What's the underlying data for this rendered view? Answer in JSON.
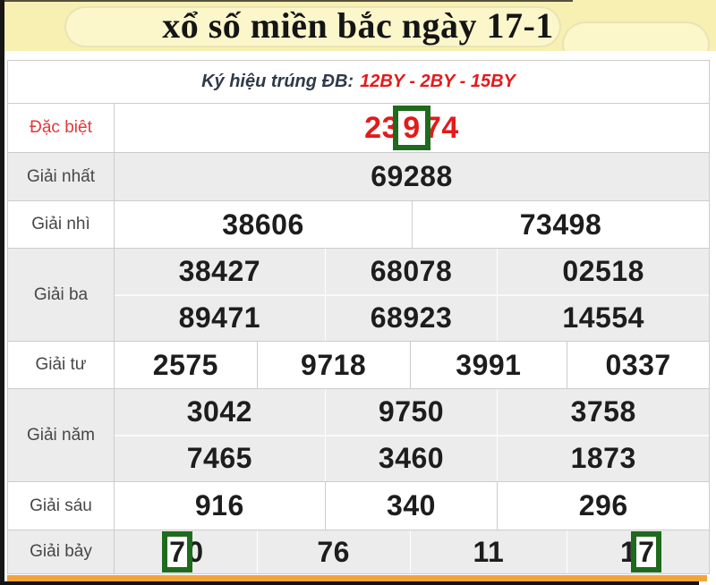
{
  "header": {
    "title": "xổ số miền bắc ngày 17-1"
  },
  "subheader": {
    "label": "Ký hiệu trúng ĐB:",
    "codes": "12BY - 2BY - 15BY"
  },
  "prizes": [
    {
      "label": "Đặc biệt",
      "cells_rows": [
        [
          "23974"
        ]
      ]
    },
    {
      "label": "Giải nhất",
      "cells_rows": [
        [
          "69288"
        ]
      ]
    },
    {
      "label": "Giải nhì",
      "cells_rows": [
        [
          "38606",
          "73498"
        ]
      ]
    },
    {
      "label": "Giải ba",
      "cells_rows": [
        [
          "38427",
          "68078",
          "02518"
        ],
        [
          "89471",
          "68923",
          "14554"
        ]
      ]
    },
    {
      "label": "Giải tư",
      "cells_rows": [
        [
          "2575",
          "9718",
          "3991",
          "0337"
        ]
      ]
    },
    {
      "label": "Giải năm",
      "cells_rows": [
        [
          "3042",
          "9750",
          "3758"
        ],
        [
          "7465",
          "3460",
          "1873"
        ]
      ]
    },
    {
      "label": "Giải sáu",
      "cells_rows": [
        [
          "916",
          "340",
          "296"
        ]
      ]
    },
    {
      "label": "Giải bảy",
      "cells_rows": [
        [
          "70",
          "76",
          "11",
          "17"
        ]
      ]
    }
  ],
  "highlights": [
    {
      "prize": 0,
      "sub": 0,
      "cell": 0,
      "digit": 2,
      "size": "big"
    },
    {
      "prize": 7,
      "sub": 0,
      "cell": 0,
      "digit": 0,
      "size": "small"
    },
    {
      "prize": 7,
      "sub": 0,
      "cell": 3,
      "digit": 1,
      "size": "small"
    }
  ],
  "colors": {
    "accent_red": "#e21b1b",
    "label_red": "#e03a3a",
    "highlight_green": "#1e6b1e",
    "header_yellow": "#f8f0b3",
    "row_shade": "#ececec",
    "table_border": "#cccccc",
    "bottom_orange": "#f4a339"
  }
}
